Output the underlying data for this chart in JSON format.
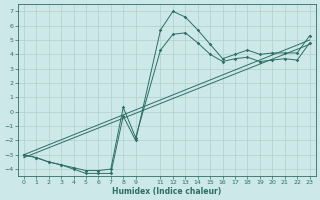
{
  "xlabel": "Humidex (Indice chaleur)",
  "xlim": [
    -0.5,
    23.5
  ],
  "ylim": [
    -4.5,
    7.5
  ],
  "yticks": [
    -4,
    -3,
    -2,
    -1,
    0,
    1,
    2,
    3,
    4,
    5,
    6,
    7
  ],
  "xtick_positions": [
    0,
    1,
    2,
    3,
    4,
    5,
    6,
    7,
    8,
    9,
    11,
    12,
    13,
    14,
    15,
    16,
    17,
    18,
    19,
    20,
    21,
    22,
    23
  ],
  "xtick_labels": [
    "0",
    "1",
    "2",
    "3",
    "4",
    "5",
    "6",
    "7",
    "8",
    "9",
    "11",
    "12",
    "13",
    "14",
    "15",
    "16",
    "17",
    "18",
    "19",
    "20",
    "21",
    "22",
    "23"
  ],
  "bg_color": "#cce8e8",
  "grid_color": "#b0d0cc",
  "line_color": "#2d6e65",
  "series": [
    {
      "x": [
        0,
        1,
        2,
        3,
        4,
        5,
        6,
        7,
        8,
        9,
        11,
        12,
        13,
        14,
        15,
        16,
        17,
        18,
        19,
        20,
        21,
        22,
        23
      ],
      "y": [
        -3.0,
        -3.2,
        -3.5,
        -3.7,
        -4.0,
        -4.3,
        -4.3,
        -4.3,
        -0.3,
        -2.0,
        5.7,
        7.0,
        6.6,
        5.7,
        4.7,
        3.7,
        4.0,
        4.3,
        4.0,
        4.1,
        4.1,
        4.1,
        5.3
      ],
      "marker": true
    },
    {
      "x": [
        0,
        1,
        2,
        3,
        4,
        5,
        6,
        7,
        8,
        9,
        11,
        12,
        13,
        14,
        15,
        16,
        17,
        18,
        19,
        20,
        21,
        22,
        23
      ],
      "y": [
        -3.0,
        -3.2,
        -3.5,
        -3.7,
        -3.9,
        -4.1,
        -4.1,
        -4.0,
        0.3,
        -1.8,
        4.3,
        5.4,
        5.5,
        4.8,
        4.0,
        3.5,
        3.7,
        3.8,
        3.5,
        3.6,
        3.7,
        3.6,
        4.8
      ],
      "marker": true
    },
    {
      "x": [
        0,
        23
      ],
      "y": [
        -3.0,
        5.0
      ],
      "marker": false
    },
    {
      "x": [
        0,
        23
      ],
      "y": [
        -3.2,
        4.7
      ],
      "marker": false
    }
  ]
}
